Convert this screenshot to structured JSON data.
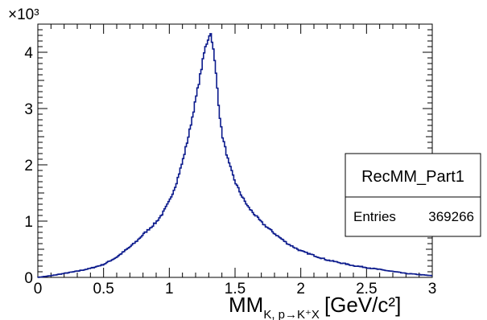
{
  "chart_data": {
    "type": "line",
    "style": "histogram-step",
    "line_color": "#0b1a8c",
    "xlim": [
      0,
      3
    ],
    "ylim": [
      0,
      4500
    ],
    "x_ticks": [
      "0",
      "0.5",
      "1",
      "1.5",
      "2",
      "2.5",
      "3"
    ],
    "x_tick_values": [
      0,
      0.5,
      1,
      1.5,
      2,
      2.5,
      3
    ],
    "y_ticks": [
      "0",
      "1",
      "2",
      "3",
      "4"
    ],
    "y_tick_values": [
      0,
      1000,
      2000,
      3000,
      4000
    ],
    "y_exponent": "×10³",
    "xlabel_main": "MM",
    "xlabel_sub": "K, p→K⁺X",
    "xlabel_unit": "[GeV/c²]",
    "grid": false,
    "stats_box": {
      "placement": "right",
      "name": "RecMM_Part1",
      "entries_label": "Entries",
      "entries_value": "369266"
    },
    "x": [
      0.0,
      0.1,
      0.2,
      0.3,
      0.4,
      0.5,
      0.6,
      0.65,
      0.7,
      0.75,
      0.8,
      0.85,
      0.9,
      0.95,
      1.0,
      1.05,
      1.1,
      1.15,
      1.2,
      1.24,
      1.27,
      1.29,
      1.31,
      1.32,
      1.34,
      1.36,
      1.38,
      1.4,
      1.45,
      1.5,
      1.55,
      1.6,
      1.7,
      1.8,
      1.9,
      2.0,
      2.2,
      2.4,
      2.6,
      2.8,
      3.0
    ],
    "y": [
      0,
      30,
      70,
      110,
      160,
      230,
      360,
      450,
      540,
      640,
      760,
      870,
      980,
      1140,
      1350,
      1650,
      2050,
      2550,
      3150,
      3650,
      4050,
      4200,
      4350,
      4300,
      3950,
      3500,
      2950,
      2550,
      2050,
      1700,
      1450,
      1250,
      980,
      780,
      600,
      470,
      310,
      210,
      140,
      70,
      30
    ]
  }
}
